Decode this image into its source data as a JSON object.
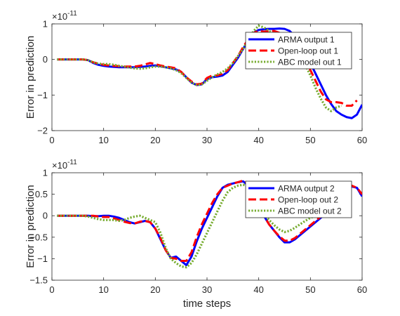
{
  "chart_data": [
    {
      "type": "line",
      "xlabel": "",
      "ylabel": "Error in prediction",
      "exponent_label": "×10",
      "exponent_power": "-11",
      "xlim": [
        0,
        60
      ],
      "ylim": [
        -2,
        1
      ],
      "xticks": [
        0,
        10,
        20,
        30,
        40,
        50,
        60
      ],
      "yticks": [
        -2,
        -1,
        0,
        1
      ],
      "legend_position": "top-right",
      "grid": false,
      "series": [
        {
          "name": "ARMA output 1",
          "color": "#0000ff",
          "style": "solid",
          "x": [
            1,
            2,
            3,
            4,
            5,
            6,
            7,
            8,
            9,
            10,
            11,
            12,
            13,
            14,
            15,
            16,
            17,
            18,
            19,
            20,
            21,
            22,
            23,
            24,
            25,
            26,
            27,
            28,
            29,
            30,
            31,
            32,
            33,
            34,
            35,
            36,
            37,
            38,
            39,
            40,
            41,
            42,
            43,
            44,
            45,
            46,
            47,
            48,
            49,
            50,
            51,
            52,
            53,
            54,
            55,
            56,
            57,
            58,
            59,
            60
          ],
          "values": [
            0,
            0,
            0,
            0,
            0,
            0,
            -0.02,
            -0.1,
            -0.15,
            -0.18,
            -0.2,
            -0.21,
            -0.22,
            -0.22,
            -0.22,
            -0.22,
            -0.21,
            -0.2,
            -0.18,
            -0.17,
            -0.19,
            -0.22,
            -0.25,
            -0.28,
            -0.35,
            -0.5,
            -0.65,
            -0.72,
            -0.7,
            -0.55,
            -0.5,
            -0.48,
            -0.45,
            -0.35,
            -0.15,
            0.05,
            0.3,
            0.55,
            0.75,
            0.83,
            0.85,
            0.86,
            0.86,
            0.87,
            0.86,
            0.8,
            0.65,
            0.4,
            0.15,
            -0.1,
            -0.4,
            -0.7,
            -1.0,
            -1.25,
            -1.45,
            -1.55,
            -1.62,
            -1.65,
            -1.55,
            -1.27
          ]
        },
        {
          "name": "Open-loop out 1",
          "color": "#ff0000",
          "style": "dashed",
          "x": [
            1,
            2,
            3,
            4,
            5,
            6,
            7,
            8,
            9,
            10,
            11,
            12,
            13,
            14,
            15,
            16,
            17,
            18,
            19,
            20,
            21,
            22,
            23,
            24,
            25,
            26,
            27,
            28,
            29,
            30,
            31,
            32,
            33,
            34,
            35,
            36,
            37,
            38,
            39,
            40,
            41,
            42,
            43,
            44,
            45,
            46,
            47,
            48,
            49,
            50,
            51,
            52,
            53,
            54,
            55,
            56,
            57,
            58,
            59
          ],
          "values": [
            0,
            0,
            0,
            0,
            0,
            0,
            -0.02,
            -0.08,
            -0.12,
            -0.15,
            -0.17,
            -0.18,
            -0.19,
            -0.2,
            -0.2,
            -0.2,
            -0.18,
            -0.14,
            -0.1,
            -0.13,
            -0.17,
            -0.2,
            -0.22,
            -0.25,
            -0.35,
            -0.5,
            -0.62,
            -0.7,
            -0.68,
            -0.52,
            -0.45,
            -0.45,
            -0.4,
            -0.3,
            -0.1,
            0.1,
            0.35,
            0.58,
            0.75,
            0.8,
            0.78,
            0.8,
            0.8,
            0.75,
            0.7,
            0.6,
            0.45,
            0.2,
            -0.05,
            -0.3,
            -0.6,
            -0.9,
            -1.12,
            -1.2,
            -1.2,
            -1.22,
            -1.3,
            -1.3,
            -1.15
          ]
        },
        {
          "name": "ABC model out 1",
          "color": "#77ac30",
          "style": "dotted",
          "x": [
            1,
            2,
            3,
            4,
            5,
            6,
            7,
            8,
            9,
            10,
            11,
            12,
            13,
            14,
            15,
            16,
            17,
            18,
            19,
            20,
            21,
            22,
            23,
            24,
            25,
            26,
            27,
            28,
            29,
            30,
            31,
            32,
            33,
            34,
            35,
            36,
            37,
            38,
            39,
            40,
            41,
            42,
            43,
            44,
            45,
            46,
            47,
            48,
            49,
            50,
            51,
            52,
            53,
            54,
            55,
            56
          ],
          "values": [
            0,
            0,
            0,
            0,
            0,
            0,
            -0.02,
            -0.08,
            -0.12,
            -0.13,
            -0.13,
            -0.15,
            -0.18,
            -0.2,
            -0.23,
            -0.25,
            -0.26,
            -0.25,
            -0.22,
            -0.2,
            -0.2,
            -0.22,
            -0.25,
            -0.3,
            -0.38,
            -0.52,
            -0.65,
            -0.72,
            -0.7,
            -0.6,
            -0.5,
            -0.42,
            -0.35,
            -0.25,
            -0.1,
            0.1,
            0.3,
            0.55,
            0.8,
            0.95,
            0.9,
            0.8,
            0.72,
            0.7,
            0.65,
            0.55,
            0.4,
            0.15,
            -0.15,
            -0.45,
            -0.8,
            -1.1,
            -1.35,
            -1.45,
            -1.35,
            -1.3
          ]
        }
      ]
    },
    {
      "type": "line",
      "xlabel": "time steps",
      "ylabel": "Error in prediction",
      "exponent_label": "×10",
      "exponent_power": "-11",
      "xlim": [
        0,
        60
      ],
      "ylim": [
        -1.5,
        1
      ],
      "xticks": [
        0,
        10,
        20,
        30,
        40,
        50,
        60
      ],
      "yticks": [
        -1.5,
        -1,
        -0.5,
        0,
        0.5,
        1
      ],
      "legend_position": "top-right",
      "grid": false,
      "series": [
        {
          "name": "ARMA output 2",
          "color": "#0000ff",
          "style": "solid",
          "x": [
            1,
            2,
            3,
            4,
            5,
            6,
            7,
            8,
            9,
            10,
            11,
            12,
            13,
            14,
            15,
            16,
            17,
            18,
            19,
            20,
            21,
            22,
            23,
            24,
            25,
            26,
            27,
            28,
            29,
            30,
            31,
            32,
            33,
            34,
            35,
            36,
            37,
            38,
            39,
            40,
            41,
            42,
            43,
            44,
            45,
            46,
            47,
            48,
            49,
            50,
            51,
            52,
            53,
            54,
            55,
            56,
            57,
            58,
            59,
            60
          ],
          "values": [
            0,
            0,
            0,
            0,
            0,
            0,
            0,
            -0.01,
            -0.01,
            0,
            0,
            -0.02,
            -0.05,
            -0.1,
            -0.15,
            -0.18,
            -0.15,
            -0.12,
            -0.15,
            -0.3,
            -0.55,
            -0.8,
            -0.98,
            -0.95,
            -1.05,
            -1.15,
            -0.95,
            -0.6,
            -0.3,
            -0.05,
            0.2,
            0.45,
            0.65,
            0.72,
            0.75,
            0.78,
            0.8,
            0.7,
            0.55,
            0.3,
            0.0,
            -0.2,
            -0.35,
            -0.5,
            -0.62,
            -0.62,
            -0.55,
            -0.45,
            -0.35,
            -0.25,
            -0.15,
            -0.05,
            0.05,
            0.15,
            0.3,
            0.45,
            0.6,
            0.68,
            0.65,
            0.45
          ]
        },
        {
          "name": "Open-loop out 2",
          "color": "#ff0000",
          "style": "dashed",
          "x": [
            1,
            2,
            3,
            4,
            5,
            6,
            7,
            8,
            9,
            10,
            11,
            12,
            13,
            14,
            15,
            16,
            17,
            18,
            19,
            20,
            21,
            22,
            23,
            24,
            25,
            26,
            27,
            28,
            29,
            30,
            31,
            32,
            33,
            34,
            35,
            36,
            37,
            38,
            39,
            40,
            41,
            42,
            43,
            44,
            45,
            46,
            47,
            48,
            49,
            50,
            51,
            52,
            53,
            54,
            55,
            56,
            57,
            58,
            59,
            60
          ],
          "values": [
            0,
            0,
            0,
            0,
            0,
            0,
            0,
            0,
            -0.02,
            -0.03,
            -0.03,
            -0.06,
            -0.1,
            -0.14,
            -0.17,
            -0.18,
            -0.14,
            -0.12,
            -0.15,
            -0.3,
            -0.52,
            -0.8,
            -0.98,
            -1.0,
            -1.05,
            -1.05,
            -0.85,
            -0.5,
            -0.2,
            0.05,
            0.3,
            0.5,
            0.65,
            0.7,
            0.75,
            0.78,
            0.82,
            0.75,
            0.55,
            0.3,
            0.0,
            -0.2,
            -0.35,
            -0.48,
            -0.58,
            -0.58,
            -0.52,
            -0.42,
            -0.32,
            -0.22,
            -0.12,
            -0.02,
            0.08,
            0.2,
            0.35,
            0.5,
            0.62,
            0.7,
            0.65,
            0.5
          ]
        },
        {
          "name": "ABC model out 2",
          "color": "#77ac30",
          "style": "dotted",
          "x": [
            1,
            2,
            3,
            4,
            5,
            6,
            7,
            8,
            9,
            10,
            11,
            12,
            13,
            14,
            15,
            16,
            17,
            18,
            19,
            20,
            21,
            22,
            23,
            24,
            25,
            26,
            27,
            28,
            29,
            30,
            31,
            32,
            33,
            34,
            35,
            36,
            37,
            38,
            39,
            40,
            41,
            42,
            43,
            44,
            45,
            46,
            47,
            48,
            49,
            50,
            51,
            52,
            53
          ],
          "values": [
            0,
            0,
            0,
            0,
            0,
            0,
            -0.02,
            -0.05,
            -0.08,
            -0.1,
            -0.1,
            -0.1,
            -0.12,
            -0.1,
            -0.05,
            -0.02,
            0.0,
            -0.05,
            -0.1,
            -0.15,
            -0.4,
            -0.75,
            -1.0,
            -1.1,
            -1.18,
            -1.2,
            -1.1,
            -0.9,
            -0.65,
            -0.4,
            -0.15,
            0.1,
            0.35,
            0.55,
            0.65,
            0.7,
            0.72,
            0.68,
            0.55,
            0.3,
            0.05,
            -0.1,
            -0.22,
            -0.32,
            -0.38,
            -0.35,
            -0.28,
            -0.2,
            -0.12,
            -0.05,
            0.0,
            0.05,
            0.1
          ]
        }
      ]
    }
  ]
}
